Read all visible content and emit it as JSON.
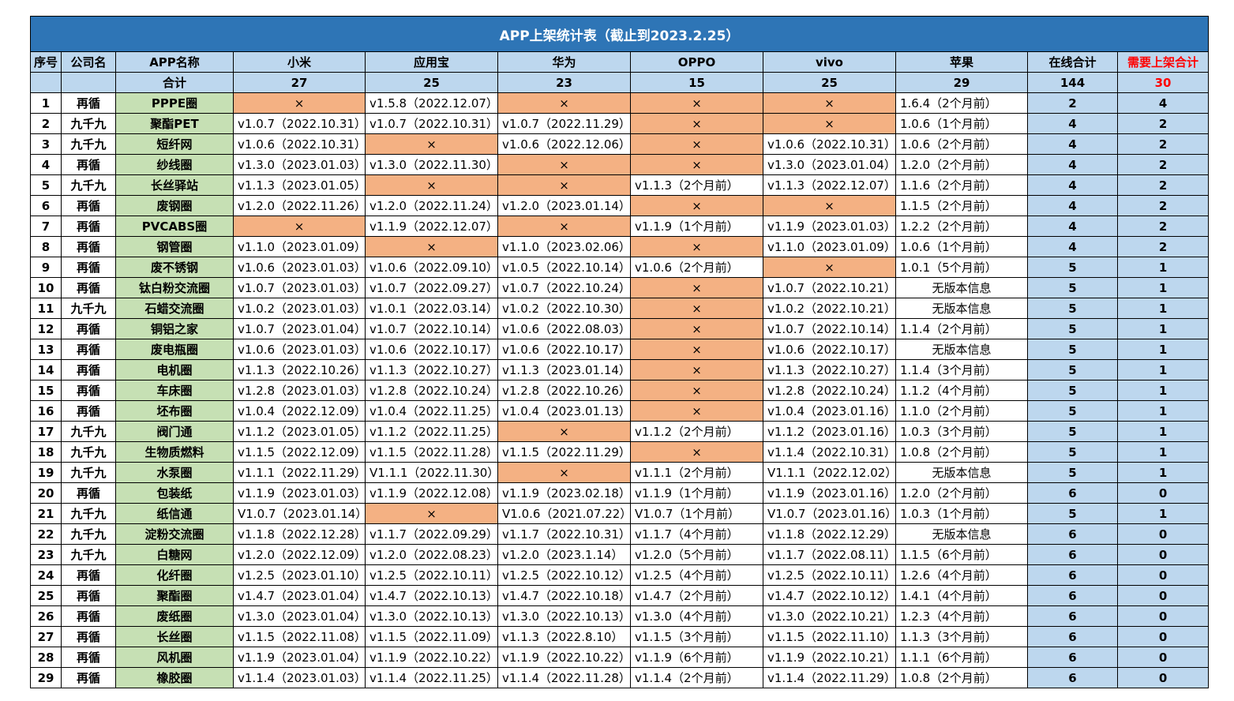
{
  "title": "APP上架统计表（截止到2023.2.25）",
  "headers": [
    "序号",
    "公司名",
    "APP名称",
    "小米",
    "应用宝",
    "华为",
    "OPPO",
    "vivo",
    "苹果",
    "在线合计",
    "需要上架合计"
  ],
  "totals": {
    "label": "合计",
    "values": [
      "27",
      "25",
      "23",
      "15",
      "25",
      "29",
      "144",
      "30"
    ]
  },
  "missing_mark": "×",
  "colors": {
    "title_bg": "#2e75b6",
    "header_bg": "#bdd7ee",
    "app_bg": "#c6e0b4",
    "missing_bg": "#f4b183",
    "alert_text": "#ff0000"
  },
  "rows": [
    {
      "idx": "1",
      "company": "再循",
      "app": "PPPE圈",
      "stores": [
        "×",
        "v1.5.8（2022.12.07）",
        "×",
        "×",
        "×",
        "1.6.4（2个月前）"
      ],
      "online": "2",
      "need": "4"
    },
    {
      "idx": "2",
      "company": "九千九",
      "app": "聚酯PET",
      "stores": [
        "v1.0.7（2022.10.31）",
        "v1.0.7（2022.10.31）",
        "v1.0.7（2022.11.29）",
        "×",
        "×",
        "1.0.6（1个月前）"
      ],
      "online": "4",
      "need": "2"
    },
    {
      "idx": "3",
      "company": "九千九",
      "app": "短纤网",
      "stores": [
        "v1.0.6（2022.10.31）",
        "×",
        "v1.0.6（2022.12.06）",
        "×",
        "v1.0.6（2022.10.31）",
        "1.0.6（2个月前）"
      ],
      "online": "4",
      "need": "2"
    },
    {
      "idx": "4",
      "company": "再循",
      "app": "纱线圈",
      "stores": [
        "v1.3.0（2023.01.03）",
        "v1.3.0（2022.11.30）",
        "×",
        "×",
        "v1.3.0（2023.01.04）",
        "1.2.0（2个月前）"
      ],
      "online": "4",
      "need": "2"
    },
    {
      "idx": "5",
      "company": "九千九",
      "app": "长丝驿站",
      "stores": [
        "v1.1.3（2023.01.05）",
        "×",
        "×",
        "v1.1.3（2个月前）",
        "v1.1.3（2022.12.07）",
        "1.1.6（2个月前）"
      ],
      "online": "4",
      "need": "2"
    },
    {
      "idx": "6",
      "company": "再循",
      "app": "废钢圈",
      "stores": [
        "v1.2.0（2022.11.26）",
        "v1.2.0（2022.11.24）",
        "v1.2.0（2023.01.14）",
        "×",
        "×",
        "1.1.5（2个月前）"
      ],
      "online": "4",
      "need": "2"
    },
    {
      "idx": "7",
      "company": "再循",
      "app": "PVCABS圈",
      "stores": [
        "×",
        "v1.1.9（2022.12.07）",
        "×",
        "v1.1.9（1个月前）",
        "v1.1.9（2023.01.03）",
        "1.2.2（2个月前）"
      ],
      "online": "4",
      "need": "2"
    },
    {
      "idx": "8",
      "company": "再循",
      "app": "钢管圈",
      "stores": [
        "v1.1.0（2023.01.09）",
        "×",
        "v1.1.0（2023.02.06）",
        "×",
        "v1.1.0（2023.01.09）",
        "1.0.6（1个月前）"
      ],
      "online": "4",
      "need": "2"
    },
    {
      "idx": "9",
      "company": "再循",
      "app": "废不锈钢",
      "stores": [
        "v1.0.6（2023.01.03）",
        "v1.0.6（2022.09.10）",
        "v1.0.5（2022.10.14）",
        "v1.0.6（2个月前）",
        "×",
        "1.0.1（5个月前）"
      ],
      "online": "5",
      "need": "1"
    },
    {
      "idx": "10",
      "company": "再循",
      "app": "钛白粉交流圈",
      "stores": [
        "v1.0.7（2023.01.03）",
        "v1.0.7（2022.09.27）",
        "v1.0.7（2022.10.24）",
        "×",
        "v1.0.7（2022.10.21）",
        "无版本信息"
      ],
      "online": "5",
      "need": "1"
    },
    {
      "idx": "11",
      "company": "九千九",
      "app": "石蜡交流圈",
      "stores": [
        "v1.0.2（2023.01.03）",
        "v1.0.1（2022.03.14）",
        "v1.0.2（2022.10.30）",
        "×",
        "v1.0.2（2022.10.21）",
        "无版本信息"
      ],
      "online": "5",
      "need": "1"
    },
    {
      "idx": "12",
      "company": "再循",
      "app": "铜铝之家",
      "stores": [
        "v1.0.7（2023.01.04）",
        "v1.0.7（2022.10.14）",
        "v1.0.6（2022.08.03）",
        "×",
        "v1.0.7（2022.10.14）",
        "1.1.4（2个月前）"
      ],
      "online": "5",
      "need": "1"
    },
    {
      "idx": "13",
      "company": "再循",
      "app": "废电瓶圈",
      "stores": [
        "v1.0.6（2023.01.03）",
        "v1.0.6（2022.10.17）",
        "v1.0.6（2022.10.17）",
        "×",
        "v1.0.6（2022.10.17）",
        "无版本信息"
      ],
      "online": "5",
      "need": "1"
    },
    {
      "idx": "14",
      "company": "再循",
      "app": "电机圈",
      "stores": [
        "v1.1.3（2022.10.26）",
        "v1.1.3（2022.10.27）",
        "v1.1.3（2023.01.14）",
        "×",
        "v1.1.3（2022.10.27）",
        "1.1.4（3个月前）"
      ],
      "online": "5",
      "need": "1"
    },
    {
      "idx": "15",
      "company": "再循",
      "app": "车床圈",
      "stores": [
        "v1.2.8（2023.01.03）",
        "v1.2.8（2022.10.24）",
        "v1.2.8（2022.10.26）",
        "×",
        "v1.2.8（2022.10.24）",
        "1.1.2（4个月前）"
      ],
      "online": "5",
      "need": "1"
    },
    {
      "idx": "16",
      "company": "再循",
      "app": "坯布圈",
      "stores": [
        "v1.0.4（2022.12.09）",
        "v1.0.4（2022.11.25）",
        "v1.0.4（2023.01.13）",
        "×",
        "v1.0.4（2023.01.16）",
        "1.1.0（2个月前）"
      ],
      "online": "5",
      "need": "1"
    },
    {
      "idx": "17",
      "company": "九千九",
      "app": "阀门通",
      "stores": [
        "v1.1.2（2023.01.05）",
        "v1.1.2（2022.11.25）",
        "×",
        "v1.1.2（2个月前）",
        "v1.1.2（2023.01.16）",
        "1.0.3（3个月前）"
      ],
      "online": "5",
      "need": "1"
    },
    {
      "idx": "18",
      "company": "九千九",
      "app": "生物质燃料",
      "stores": [
        "v1.1.5（2022.12.09）",
        "v1.1.5（2022.11.28）",
        "v1.1.5（2022.11.29）",
        "×",
        "v1.1.4（2022.10.31）",
        "1.0.8（2个月前）"
      ],
      "online": "5",
      "need": "1"
    },
    {
      "idx": "19",
      "company": "九千九",
      "app": "水泵圈",
      "stores": [
        "v1.1.1（2022.11.29）",
        "V1.1.1（2022.11.30）",
        "×",
        "v1.1.1（2个月前）",
        "V1.1.1（2022.12.02）",
        "无版本信息"
      ],
      "online": "5",
      "need": "1"
    },
    {
      "idx": "20",
      "company": "再循",
      "app": "包装纸",
      "stores": [
        "v1.1.9（2023.01.03）",
        "v1.1.9（2022.12.08）",
        "v1.1.9（2023.02.18）",
        "v1.1.9（1个月前）",
        "v1.1.9（2023.01.16）",
        "1.2.0（2个月前）"
      ],
      "online": "6",
      "need": "0"
    },
    {
      "idx": "21",
      "company": "九千九",
      "app": "纸信通",
      "stores": [
        "V1.0.7（2023.01.14）",
        "×",
        "V1.0.6（2021.07.22）",
        "V1.0.7（1个月前）",
        "V1.0.7（2023.01.16）",
        "1.0.3（1个月前）"
      ],
      "online": "5",
      "need": "1"
    },
    {
      "idx": "22",
      "company": "九千九",
      "app": "淀粉交流圈",
      "stores": [
        "v1.1.8（2022.12.28）",
        "v1.1.7（2022.09.29）",
        "v1.1.7（2022.10.31）",
        "v1.1.7（4个月前）",
        "v1.1.8（2022.12.29）",
        "无版本信息"
      ],
      "online": "6",
      "need": "0"
    },
    {
      "idx": "23",
      "company": "九千九",
      "app": "白糖网",
      "stores": [
        "v1.2.0（2022.12.09）",
        "v1.2.0（2022.08.23）",
        "v1.2.0（2023.1.14）",
        "v1.2.0（5个月前）",
        "v1.1.7（2022.08.11）",
        "1.1.5（6个月前）"
      ],
      "online": "6",
      "need": "0"
    },
    {
      "idx": "24",
      "company": "再循",
      "app": "化纤圈",
      "stores": [
        "v1.2.5（2023.01.10）",
        "v1.2.5（2022.10.11）",
        "v1.2.5（2022.10.12）",
        "v1.2.5（4个月前）",
        "v1.2.5（2022.10.11）",
        "1.2.6（4个月前）"
      ],
      "online": "6",
      "need": "0"
    },
    {
      "idx": "25",
      "company": "再循",
      "app": "聚酯圈",
      "stores": [
        "v1.4.7（2023.01.04）",
        "v1.4.7（2022.10.13）",
        "v1.4.7（2022.10.18）",
        "v1.4.7（2个月前）",
        "v1.4.7（2022.10.12）",
        "1.4.1（4个月前）"
      ],
      "online": "6",
      "need": "0"
    },
    {
      "idx": "26",
      "company": "再循",
      "app": "废纸圈",
      "stores": [
        "v1.3.0（2023.01.04）",
        "v1.3.0（2022.10.13）",
        "v1.3.0（2022.10.13）",
        "v1.3.0（4个月前）",
        "v1.3.0（2022.10.21）",
        "1.2.3（4个月前）"
      ],
      "online": "6",
      "need": "0"
    },
    {
      "idx": "27",
      "company": "再循",
      "app": "长丝圈",
      "stores": [
        "v1.1.5（2022.11.08）",
        "v1.1.5（2022.11.09）",
        "v1.1.3（2022.8.10）",
        "v1.1.5（3个月前）",
        "v1.1.5（2022.11.10）",
        "1.1.3（3个月前）"
      ],
      "online": "6",
      "need": "0"
    },
    {
      "idx": "28",
      "company": "再循",
      "app": "风机圈",
      "stores": [
        "v1.1.9（2023.01.04）",
        "v1.1.9（2022.10.22）",
        "v1.1.9（2022.10.22）",
        "v1.1.9（6个月前）",
        "v1.1.9（2022.10.21）",
        "1.1.1（6个月前）"
      ],
      "online": "6",
      "need": "0"
    },
    {
      "idx": "29",
      "company": "再循",
      "app": "橡胶圈",
      "stores": [
        "v1.1.4（2023.01.03）",
        "v1.1.4（2022.11.25）",
        "v1.1.4（2022.11.28）",
        "v1.1.4（2个月前）",
        "v1.1.4（2022.11.29）",
        "1.0.8（2个月前）"
      ],
      "online": "6",
      "need": "0"
    }
  ]
}
